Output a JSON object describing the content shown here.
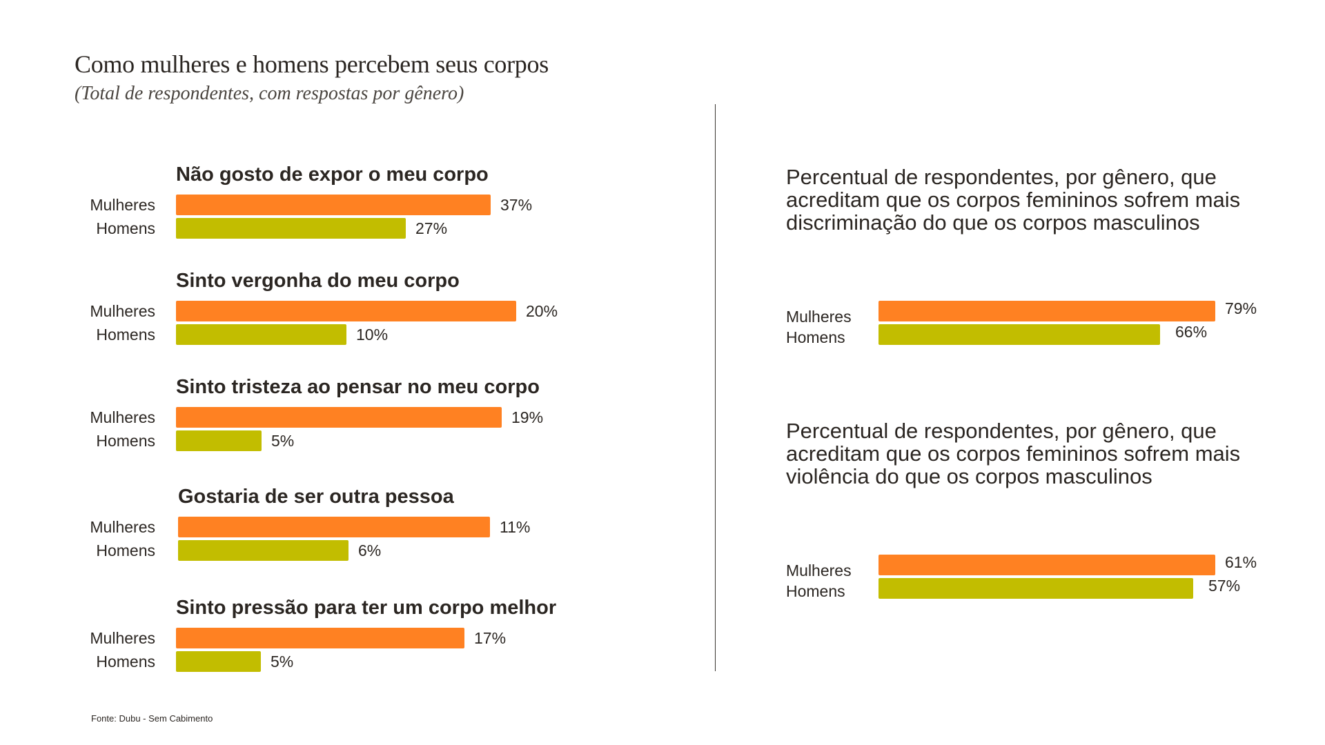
{
  "header": {
    "title": "Como mulheres e homens percebem seus corpos",
    "subtitle": "(Total de respondentes, com respostas por gênero)"
  },
  "colors": {
    "mulheres": "#ff8122",
    "homens": "#c2bd00",
    "text": "#2b2622"
  },
  "footer": {
    "source": "Fonte: Dubu - Sem Cabimento"
  },
  "chart_data": [
    {
      "type": "bar",
      "orientation": "horizontal",
      "title": "Como mulheres e homens percebem seus corpos",
      "subtitle": "(Total de respondentes, com respostas por gênero)",
      "categories": [
        "Não gosto de expor o meu corpo",
        "Sinto vergonha do meu corpo",
        "Sinto tristeza ao pensar no meu corpo",
        "Gostaria de ser outra pessoa",
        "Sinto pressão para ter um corpo melhor"
      ],
      "series": [
        {
          "name": "Mulheres",
          "values": [
            37,
            20,
            19,
            11,
            17
          ],
          "labels": [
            "37%",
            "20%",
            "19%",
            "11%",
            "17%"
          ]
        },
        {
          "name": "Homens",
          "values": [
            27,
            10,
            5,
            6,
            5
          ],
          "labels": [
            "27%",
            "10%",
            "5%",
            "6%",
            "5%"
          ]
        }
      ],
      "unit": "%",
      "grid": false,
      "legend": "none (row labels per bar)"
    },
    {
      "type": "bar",
      "orientation": "horizontal",
      "title": "Percentual de respondentes, por gênero, que acreditam que os corpos femininos sofrem mais discriminação do que os corpos masculinos",
      "categories": [
        "Mulheres",
        "Homens"
      ],
      "values": [
        79,
        66
      ],
      "labels": [
        "79%",
        "66%"
      ],
      "unit": "%",
      "grid": false
    },
    {
      "type": "bar",
      "orientation": "horizontal",
      "title": "Percentual de respondentes, por gênero, que acreditam que os corpos femininos sofrem mais violência do que os corpos masculinos",
      "categories": [
        "Mulheres",
        "Homens"
      ],
      "values": [
        61,
        57
      ],
      "labels": [
        "61%",
        "57%"
      ],
      "unit": "%",
      "grid": false
    }
  ]
}
